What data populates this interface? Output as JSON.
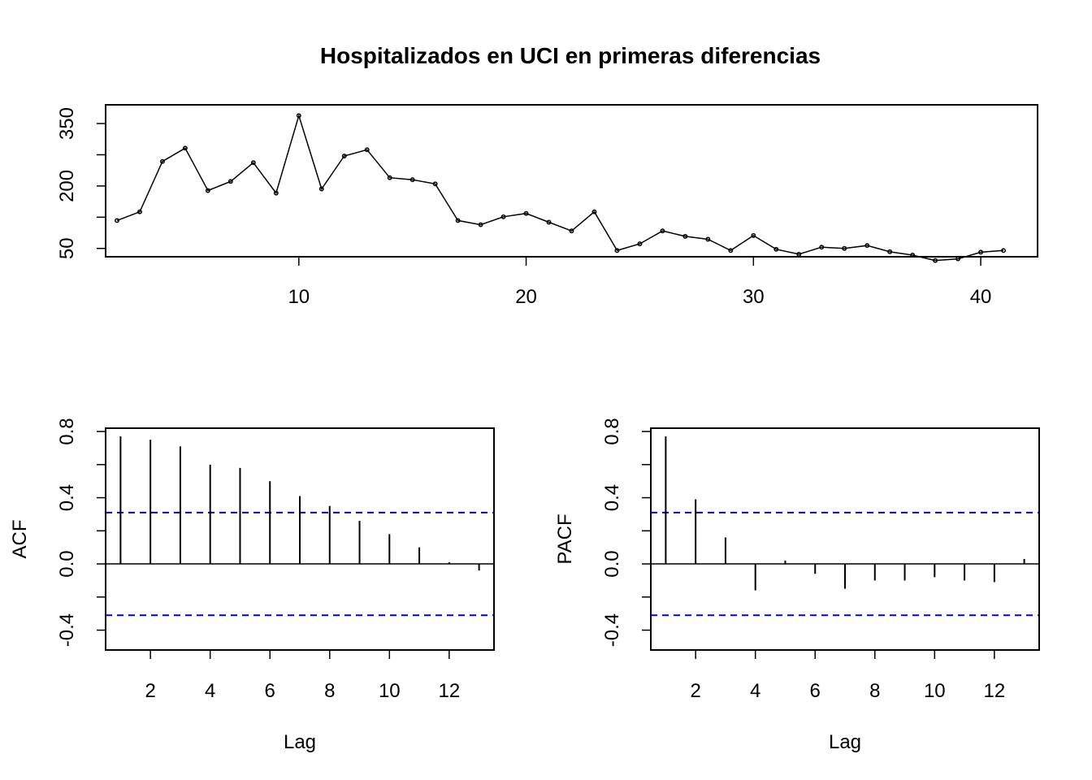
{
  "chart_data": [
    {
      "type": "line",
      "title": "Hospitalizados en UCI en primeras diferencias",
      "xlabel": "",
      "ylabel": "",
      "xlim": [
        1.5,
        42.5
      ],
      "ylim": [
        30,
        395
      ],
      "xticks": [
        10,
        20,
        30,
        40
      ],
      "yticks": [
        50,
        200,
        350
      ],
      "yticks_minor": [
        125,
        275
      ],
      "x": [
        2,
        3,
        4,
        5,
        6,
        7,
        8,
        9,
        10,
        11,
        12,
        13,
        14,
        15,
        16,
        17,
        18,
        19,
        20,
        21,
        22,
        23,
        24,
        25,
        26,
        27,
        28,
        29,
        30,
        31,
        32,
        33,
        34,
        35,
        36,
        37,
        38,
        39,
        40,
        41
      ],
      "values": [
        117,
        138,
        259,
        291,
        189,
        211,
        256,
        183,
        369,
        193,
        272,
        287,
        220,
        215,
        205,
        117,
        107,
        126,
        134,
        113,
        92,
        138,
        45,
        61,
        92,
        79,
        72,
        45,
        81,
        48,
        36,
        53,
        50,
        57,
        42,
        34,
        21,
        25,
        41,
        45
      ],
      "marker_color": "#000000",
      "line_color": "#000000"
    },
    {
      "type": "bar",
      "title": "",
      "xlabel": "Lag",
      "ylabel": "ACF",
      "xlim": [
        0.5,
        13.5
      ],
      "ylim": [
        -0.52,
        0.82
      ],
      "xticks": [
        2,
        4,
        6,
        8,
        10,
        12
      ],
      "yticks": [
        -0.4,
        0.0,
        0.4,
        0.8
      ],
      "yticks_labels": [
        "-0.4",
        "0.0",
        "0.4",
        "0.8"
      ],
      "yticks_minor": [
        -0.2,
        0.2,
        0.6
      ],
      "lags": [
        1,
        2,
        3,
        4,
        5,
        6,
        7,
        8,
        9,
        10,
        11,
        12,
        13
      ],
      "values": [
        0.77,
        0.75,
        0.71,
        0.6,
        0.58,
        0.5,
        0.41,
        0.35,
        0.26,
        0.18,
        0.1,
        0.01,
        -0.04
      ],
      "conf_bounds": [
        0.31,
        -0.31
      ],
      "conf_color": "#0000cd",
      "bar_color": "#000000"
    },
    {
      "type": "bar",
      "title": "",
      "xlabel": "Lag",
      "ylabel": "PACF",
      "xlim": [
        0.5,
        13.5
      ],
      "ylim": [
        -0.52,
        0.82
      ],
      "xticks": [
        2,
        4,
        6,
        8,
        10,
        12
      ],
      "yticks": [
        -0.4,
        0.0,
        0.4,
        0.8
      ],
      "yticks_labels": [
        "-0.4",
        "0.0",
        "0.4",
        "0.8"
      ],
      "yticks_minor": [
        -0.2,
        0.2,
        0.6
      ],
      "lags": [
        1,
        2,
        3,
        4,
        5,
        6,
        7,
        8,
        9,
        10,
        11,
        12,
        13
      ],
      "values": [
        0.77,
        0.39,
        0.16,
        -0.16,
        0.02,
        -0.06,
        -0.15,
        -0.1,
        -0.1,
        -0.08,
        -0.1,
        -0.11,
        0.03
      ],
      "conf_bounds": [
        0.31,
        -0.31
      ],
      "conf_color": "#0000cd",
      "bar_color": "#000000"
    }
  ]
}
